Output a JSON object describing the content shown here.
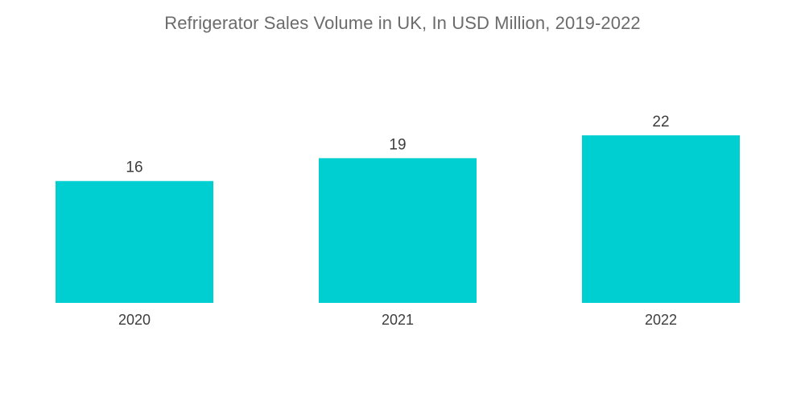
{
  "chart_data": {
    "type": "bar",
    "title": "Refrigerator Sales Volume in UK, In USD Million, 2019-2022",
    "categories": [
      "2020",
      "2021",
      "2022"
    ],
    "values": [
      16,
      19,
      22
    ],
    "data_labels": [
      "16",
      "19",
      "22"
    ],
    "xlabel": "",
    "ylabel": "",
    "ylim": [
      0,
      22
    ],
    "grid": false,
    "legend": "none",
    "bar_color": "#00cfd1"
  }
}
